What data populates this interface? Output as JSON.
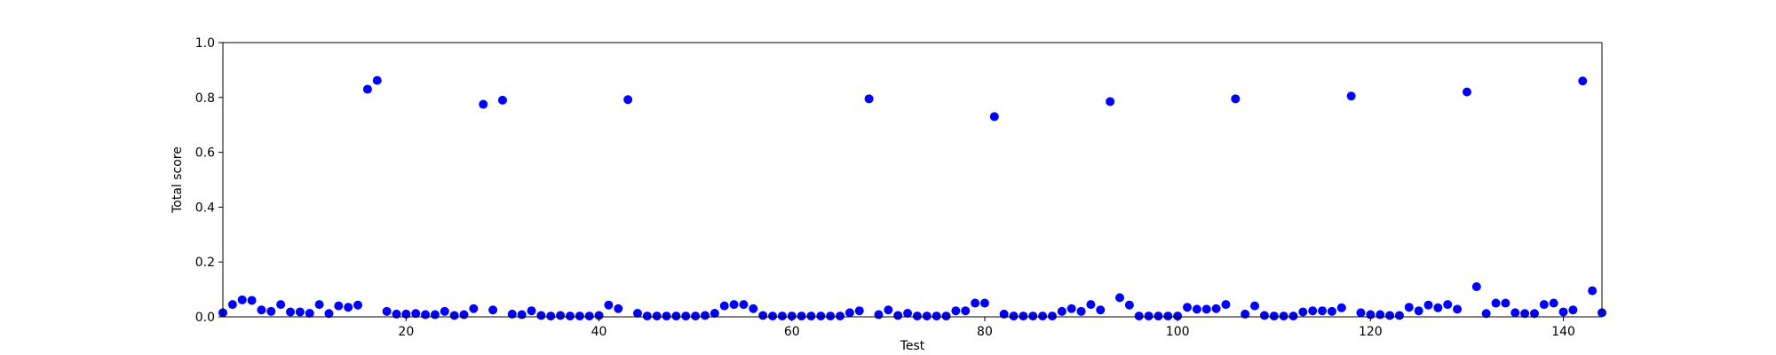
{
  "chart_data": {
    "type": "scatter",
    "title": "",
    "xlabel": "Test",
    "ylabel": "Total score",
    "xlim": [
      1,
      144
    ],
    "ylim": [
      0,
      1.0
    ],
    "xticks": [
      20,
      40,
      60,
      80,
      100,
      120,
      140
    ],
    "yticks": [
      0.0,
      0.2,
      0.4,
      0.6,
      0.8,
      1.0
    ],
    "xtick_labels": [
      "20",
      "40",
      "60",
      "80",
      "100",
      "120",
      "140"
    ],
    "ytick_labels": [
      "0.0",
      "0.2",
      "0.4",
      "0.6",
      "0.8",
      "1.0"
    ],
    "grid": false,
    "marker_color": "#0000ff",
    "series": [
      {
        "x": [
          1,
          2,
          3,
          4,
          5,
          6,
          7,
          8,
          9,
          10,
          11,
          12,
          13,
          14,
          15,
          16,
          17,
          18,
          19,
          20,
          21,
          22,
          23,
          24,
          25,
          26,
          27,
          28,
          29,
          30,
          31,
          32,
          33,
          34,
          35,
          36,
          37,
          38,
          39,
          40,
          41,
          42,
          43,
          44,
          45,
          46,
          47,
          48,
          49,
          50,
          51,
          52,
          53,
          54,
          55,
          56,
          57,
          58,
          59,
          60,
          61,
          62,
          63,
          64,
          65,
          66,
          67,
          68,
          69,
          70,
          71,
          72,
          73,
          74,
          75,
          76,
          77,
          78,
          79,
          80,
          81,
          82,
          83,
          84,
          85,
          86,
          87,
          88,
          89,
          90,
          91,
          92,
          93,
          94,
          95,
          96,
          97,
          98,
          99,
          100,
          101,
          102,
          103,
          104,
          105,
          106,
          107,
          108,
          109,
          110,
          111,
          112,
          113,
          114,
          115,
          116,
          117,
          118,
          119,
          120,
          121,
          122,
          123,
          124,
          125,
          126,
          127,
          128,
          129,
          130,
          131,
          132,
          133,
          134,
          135,
          136,
          137,
          138,
          139,
          140,
          141,
          142,
          143,
          144
        ],
        "y": [
          0.015,
          0.045,
          0.062,
          0.06,
          0.025,
          0.02,
          0.045,
          0.018,
          0.018,
          0.013,
          0.045,
          0.012,
          0.04,
          0.035,
          0.043,
          0.83,
          0.862,
          0.02,
          0.01,
          0.01,
          0.012,
          0.008,
          0.008,
          0.02,
          0.005,
          0.008,
          0.03,
          0.775,
          0.025,
          0.79,
          0.01,
          0.008,
          0.022,
          0.005,
          0.003,
          0.005,
          0.003,
          0.003,
          0.003,
          0.005,
          0.043,
          0.03,
          0.792,
          0.013,
          0.003,
          0.003,
          0.003,
          0.003,
          0.003,
          0.003,
          0.005,
          0.013,
          0.04,
          0.045,
          0.045,
          0.03,
          0.005,
          0.003,
          0.003,
          0.003,
          0.003,
          0.003,
          0.003,
          0.003,
          0.003,
          0.015,
          0.022,
          0.795,
          0.008,
          0.025,
          0.005,
          0.013,
          0.003,
          0.003,
          0.003,
          0.003,
          0.022,
          0.022,
          0.05,
          0.05,
          0.73,
          0.01,
          0.003,
          0.003,
          0.003,
          0.003,
          0.003,
          0.02,
          0.03,
          0.02,
          0.045,
          0.025,
          0.785,
          0.07,
          0.043,
          0.003,
          0.003,
          0.003,
          0.003,
          0.003,
          0.035,
          0.028,
          0.028,
          0.03,
          0.045,
          0.795,
          0.01,
          0.04,
          0.005,
          0.003,
          0.003,
          0.003,
          0.018,
          0.022,
          0.022,
          0.02,
          0.033,
          0.805,
          0.015,
          0.008,
          0.008,
          0.005,
          0.005,
          0.035,
          0.022,
          0.043,
          0.033,
          0.045,
          0.028,
          0.82,
          0.11,
          0.012,
          0.05,
          0.05,
          0.015,
          0.012,
          0.012,
          0.045,
          0.05,
          0.018,
          0.025,
          0.86,
          0.095,
          0.015
        ]
      }
    ]
  }
}
